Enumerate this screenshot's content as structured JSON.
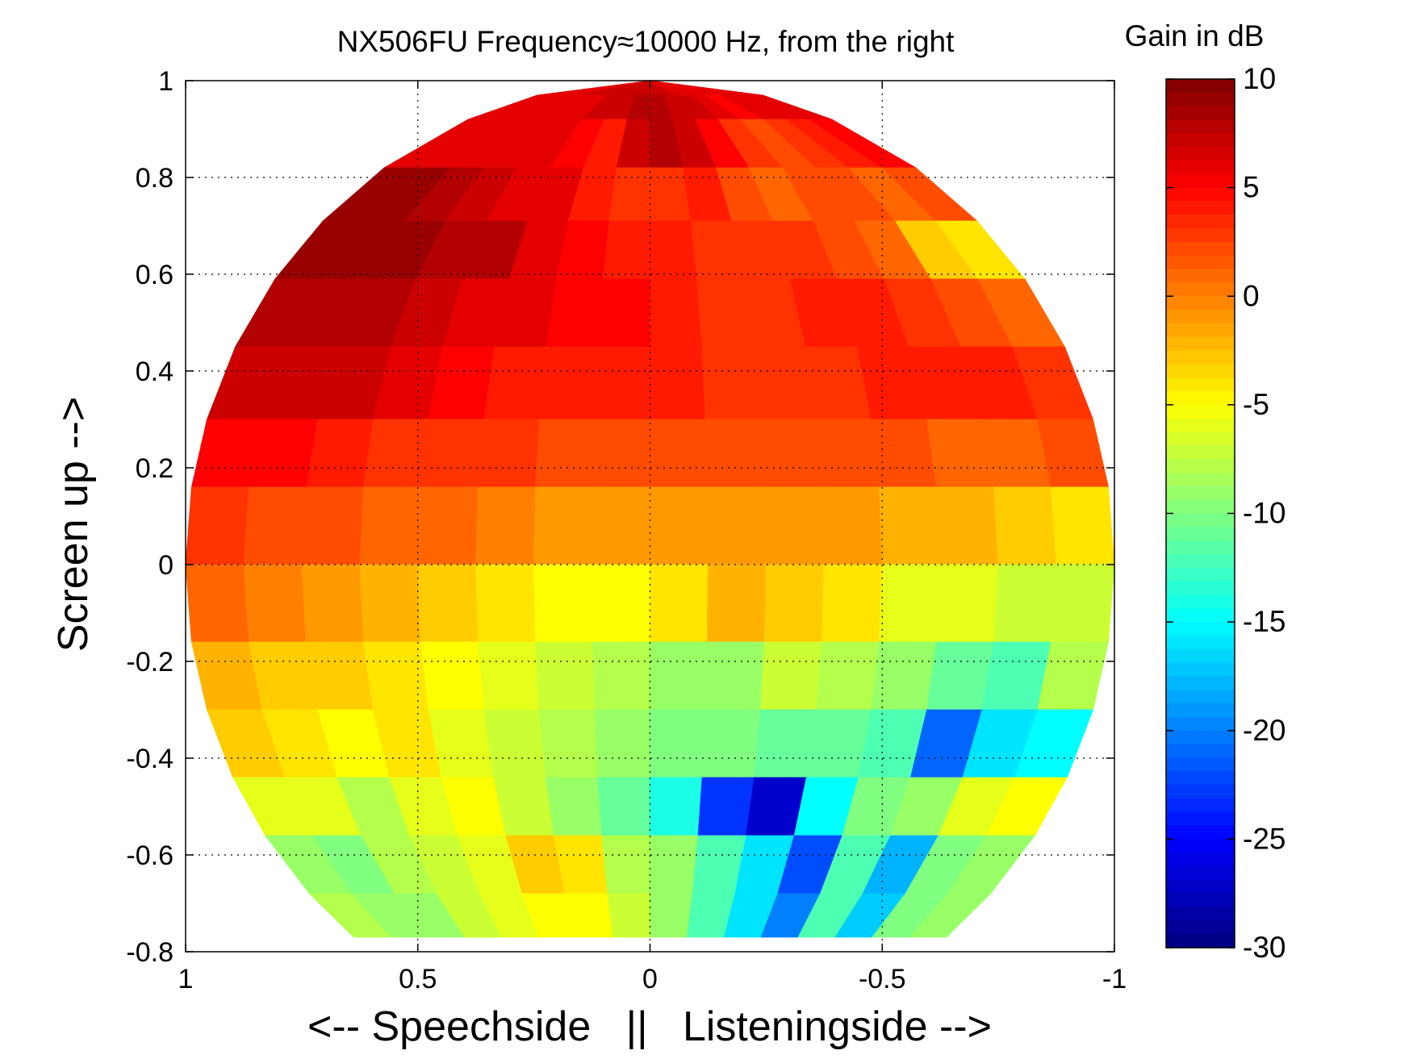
{
  "chart_data": {
    "type": "heatmap",
    "title": "NX506FU Frequency≈10000 Hz, from the right",
    "xlabel": "<-- Speechside   ||   Listeningside -->",
    "ylabel": "Screen up -->",
    "xlim": [
      1,
      -1
    ],
    "ylim": [
      -0.8,
      1
    ],
    "x_reversed": true,
    "grid": true,
    "x_ticks": [
      1,
      0.5,
      0,
      -0.5,
      -1
    ],
    "x_tick_labels": [
      "1",
      "0.5",
      "0",
      "-0.5",
      "-1"
    ],
    "y_ticks": [
      1,
      0.8,
      0.6,
      0.4,
      0.2,
      0,
      -0.2,
      -0.4,
      -0.6,
      -0.8
    ],
    "y_tick_labels": [
      "1",
      "0.8",
      "0.6",
      "0.4",
      "0.2",
      "0",
      "-0.2",
      "-0.4",
      "-0.6",
      "-0.8"
    ],
    "colorbar": {
      "label": "Gain in dB",
      "min": -30,
      "max": 10,
      "ticks": [
        10,
        5,
        0,
        -5,
        -10,
        -15,
        -20,
        -25,
        -30
      ],
      "tick_labels": [
        "10",
        "5",
        "0",
        "-5",
        "-10",
        "-15",
        "-20",
        "-25",
        "-30"
      ],
      "colormap": "jet"
    },
    "row_y_edges": [
      1.0,
      0.97,
      0.92,
      0.82,
      0.71,
      0.59,
      0.45,
      0.3,
      0.16,
      0.0,
      -0.16,
      -0.3,
      -0.44,
      -0.56,
      -0.68,
      -0.77
    ],
    "columns": 16,
    "gain_db": [
      [
        6,
        6,
        6,
        7,
        7,
        7,
        7,
        7,
        7,
        7,
        6,
        6,
        6,
        6,
        6,
        6
      ],
      [
        6,
        6,
        6,
        6,
        6,
        7,
        7,
        8,
        8,
        7,
        7,
        6,
        5,
        6,
        6,
        6
      ],
      [
        6,
        6,
        6,
        6,
        6,
        5,
        4,
        7,
        8,
        7,
        5,
        3,
        2,
        3,
        4,
        5
      ],
      [
        9,
        9,
        8,
        7,
        6,
        6,
        4,
        3,
        3,
        4,
        2,
        1,
        2,
        2,
        1,
        2
      ],
      [
        9,
        9,
        9,
        8,
        8,
        6,
        5,
        4,
        4,
        3,
        3,
        3,
        2,
        1,
        -3,
        -4
      ],
      [
        8,
        8,
        8,
        7,
        6,
        6,
        5,
        5,
        4,
        3,
        3,
        4,
        4,
        3,
        2,
        1
      ],
      [
        7,
        7,
        7,
        6,
        5,
        4,
        4,
        4,
        4,
        3,
        3,
        3,
        4,
        4,
        4,
        3
      ],
      [
        5,
        5,
        4,
        3,
        3,
        3,
        2,
        2,
        2,
        2,
        2,
        2,
        2,
        1,
        1,
        2
      ],
      [
        3,
        2,
        2,
        1,
        1,
        0,
        -1,
        -1,
        -1,
        -1,
        -1,
        -1,
        -2,
        -2,
        -3,
        -4
      ],
      [
        1,
        0,
        -1,
        -2,
        -3,
        -4,
        -5,
        -5,
        -4,
        -2,
        -3,
        -4,
        -6,
        -6,
        -7,
        -7
      ],
      [
        -2,
        -3,
        -3,
        -4,
        -5,
        -6,
        -7,
        -8,
        -9,
        -9,
        -7,
        -8,
        -9,
        -11,
        -12,
        -8
      ],
      [
        -3,
        -4,
        -5,
        -4,
        -6,
        -7,
        -8,
        -9,
        -10,
        -10,
        -11,
        -11,
        -12,
        -21,
        -16,
        -15
      ],
      [
        -6,
        -6,
        -8,
        -6,
        -5,
        -7,
        -9,
        -11,
        -14,
        -23,
        -27,
        -15,
        -10,
        -9,
        -6,
        -5
      ],
      [
        -9,
        -10,
        -8,
        -7,
        -6,
        -3,
        -4,
        -8,
        -9,
        -12,
        -16,
        -22,
        -12,
        -18,
        -10,
        -9
      ],
      [
        -8,
        -9,
        -9,
        -7,
        -6,
        -5,
        -5,
        -7,
        -9,
        -12,
        -16,
        -20,
        -12,
        -17,
        -10,
        -9
      ]
    ]
  }
}
